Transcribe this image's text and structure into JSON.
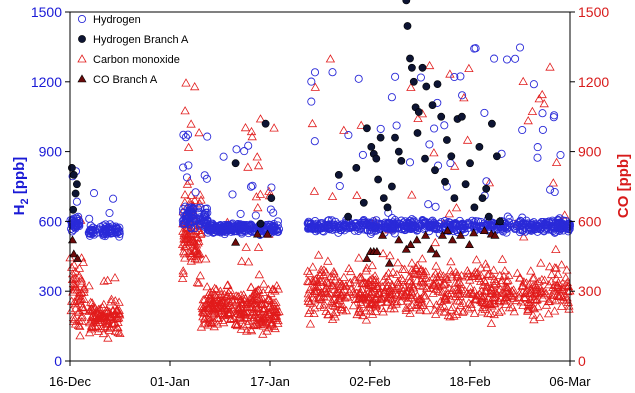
{
  "chart_data": {
    "type": "scatter",
    "title": "",
    "xlabel": "",
    "x_tick_labels": [
      "16-Dec",
      "01-Jan",
      "17-Jan",
      "02-Feb",
      "18-Feb",
      "06-Mar"
    ],
    "x_range_days": [
      0,
      80
    ],
    "y_left": {
      "label_main": "H",
      "label_sub": "2",
      "label_unit": " [ppb]",
      "ticks": [
        0,
        300,
        600,
        900,
        1200,
        1500
      ],
      "range": [
        0,
        1500
      ],
      "color": "#1a1ad6"
    },
    "y_right": {
      "label": "CO [ppb]",
      "ticks": [
        0,
        300,
        600,
        900,
        1200,
        1500
      ],
      "range": [
        0,
        1500
      ],
      "color": "#d81b1b"
    },
    "legend_position": "top-left",
    "series": [
      {
        "name": "Hydrogen",
        "axis": "left",
        "marker": "circle-open",
        "color": "#2a2ad8",
        "segments": [
          {
            "start": 0,
            "end": 1.5,
            "base": 590,
            "spread": 30,
            "spike_prob": 0.12,
            "spike_max": 930,
            "n": 40
          },
          {
            "start": 3,
            "end": 8,
            "base": 560,
            "spread": 25,
            "spike_prob": 0.06,
            "spike_max": 740,
            "n": 80
          },
          {
            "start": 18,
            "end": 22,
            "base": 620,
            "spread": 45,
            "spike_prob": 0.15,
            "spike_max": 1000,
            "n": 90
          },
          {
            "start": 22,
            "end": 33.5,
            "base": 570,
            "spread": 22,
            "spike_prob": 0.06,
            "spike_max": 930,
            "n": 230
          },
          {
            "start": 38,
            "end": 80,
            "base": 580,
            "spread": 25,
            "spike_prob": 0.08,
            "spike_max": 1350,
            "n": 650
          }
        ]
      },
      {
        "name": "Hydrogen Branch A",
        "axis": "left",
        "marker": "circle-filled",
        "color": "#0d1433",
        "points": [
          [
            0.3,
            830
          ],
          [
            0.6,
            800
          ],
          [
            0.9,
            720
          ],
          [
            1.1,
            760
          ],
          [
            0.5,
            650
          ],
          [
            30.5,
            590
          ],
          [
            31.3,
            1020
          ],
          [
            32.2,
            700
          ],
          [
            26.5,
            850
          ],
          [
            43,
            800
          ],
          [
            45.8,
            830
          ],
          [
            47.5,
            1000
          ],
          [
            48.2,
            920
          ],
          [
            48.6,
            890
          ],
          [
            49,
            870
          ],
          [
            49.3,
            780
          ],
          [
            49.7,
            960
          ],
          [
            50.2,
            700
          ],
          [
            53.8,
            1550
          ],
          [
            54,
            1440
          ],
          [
            54.4,
            1300
          ],
          [
            54.7,
            1260
          ],
          [
            55,
            1200
          ],
          [
            55.3,
            1090
          ],
          [
            55.8,
            1070
          ],
          [
            56.4,
            1260
          ],
          [
            57,
            1180
          ],
          [
            58,
            1100
          ],
          [
            58.8,
            1190
          ],
          [
            59.4,
            1050
          ],
          [
            60.3,
            950
          ],
          [
            61,
            880
          ],
          [
            62,
            1040
          ],
          [
            62.7,
            1050
          ],
          [
            64,
            850
          ],
          [
            65.5,
            920
          ],
          [
            66.6,
            740
          ],
          [
            67.5,
            1020
          ],
          [
            68.3,
            880
          ],
          [
            52,
            960
          ],
          [
            52.6,
            900
          ],
          [
            53,
            860
          ],
          [
            55.6,
            980
          ],
          [
            56.8,
            870
          ],
          [
            58.4,
            820
          ],
          [
            60,
            770
          ],
          [
            61.5,
            700
          ],
          [
            63.3,
            760
          ],
          [
            64.7,
            660
          ],
          [
            66,
            700
          ],
          [
            67,
            620
          ],
          [
            68.8,
            600
          ],
          [
            50.8,
            660
          ],
          [
            51.5,
            750
          ],
          [
            47,
            680
          ],
          [
            44.5,
            620
          ]
        ]
      },
      {
        "name": "Carbon monoxide",
        "axis": "right",
        "marker": "triangle-open",
        "color": "#e11b1b",
        "segments": [
          {
            "start": 0,
            "end": 2.3,
            "base": 270,
            "spread": 150,
            "spike_prob": 0.08,
            "spike_max": 780,
            "n": 60
          },
          {
            "start": 3,
            "end": 8,
            "base": 190,
            "spread": 70,
            "spike_prob": 0.05,
            "spike_max": 470,
            "n": 110
          },
          {
            "start": 18,
            "end": 21,
            "base": 540,
            "spread": 160,
            "spike_prob": 0.12,
            "spike_max": 1240,
            "n": 110
          },
          {
            "start": 21,
            "end": 33.5,
            "base": 220,
            "spread": 90,
            "spike_prob": 0.06,
            "spike_max": 1200,
            "n": 320
          },
          {
            "start": 38,
            "end": 80,
            "base": 300,
            "spread": 110,
            "spike_prob": 0.07,
            "spike_max": 1300,
            "n": 720
          }
        ]
      },
      {
        "name": "CO Branch A",
        "axis": "right",
        "marker": "triangle-filled",
        "color": "#6b0a0a",
        "points": [
          [
            0.6,
            460
          ],
          [
            1.2,
            440
          ],
          [
            0.4,
            520
          ],
          [
            26.5,
            510
          ],
          [
            30,
            545
          ],
          [
            31.6,
            545
          ],
          [
            47.5,
            440
          ],
          [
            48.1,
            470
          ],
          [
            48.6,
            470
          ],
          [
            49.1,
            470
          ],
          [
            50,
            540
          ],
          [
            53.8,
            480
          ],
          [
            54.5,
            500
          ],
          [
            55.5,
            520
          ],
          [
            56.9,
            540
          ],
          [
            57.8,
            480
          ],
          [
            58.6,
            460
          ],
          [
            59.6,
            540
          ],
          [
            60.4,
            560
          ],
          [
            61.2,
            520
          ],
          [
            62.5,
            540
          ],
          [
            63.9,
            500
          ],
          [
            64.6,
            550
          ],
          [
            66.3,
            560
          ],
          [
            67.4,
            545
          ],
          [
            68,
            540
          ],
          [
            68.7,
            600
          ],
          [
            52.6,
            520
          ],
          [
            51.1,
            420
          ]
        ]
      }
    ]
  }
}
